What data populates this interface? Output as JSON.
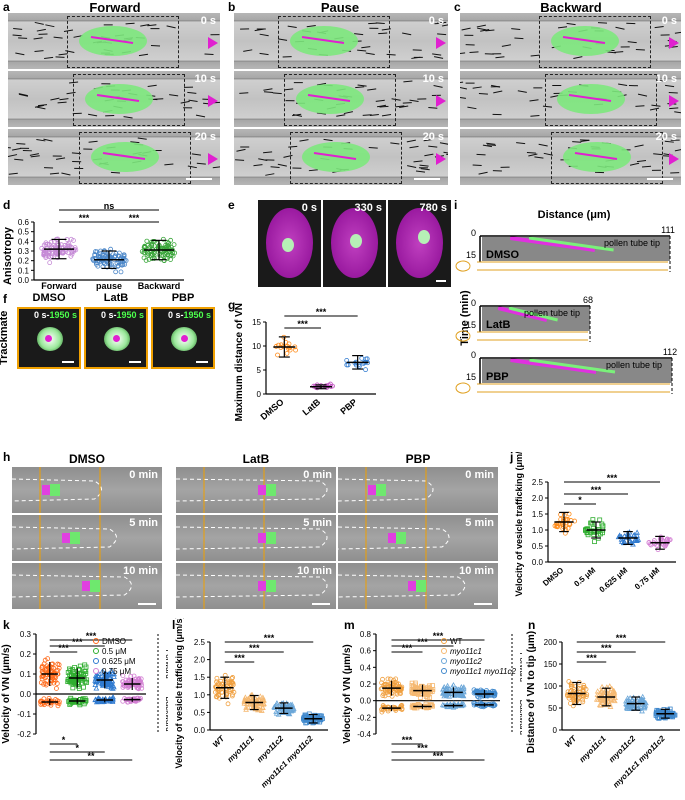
{
  "panels": {
    "a": {
      "letter": "a",
      "title": "Forward",
      "times": [
        "0 s",
        "10 s",
        "20 s"
      ]
    },
    "b": {
      "letter": "b",
      "title": "Pause",
      "times": [
        "0 s",
        "10 s",
        "20 s"
      ]
    },
    "c": {
      "letter": "c",
      "title": "Backward",
      "times": [
        "0 s",
        "10 s",
        "20 s"
      ]
    },
    "d": {
      "letter": "d",
      "ylabel": "Anisotropy",
      "categories": [
        "Forward",
        "pause",
        "Backward"
      ],
      "yticks": [
        "0.0",
        "0.1",
        "0.2",
        "0.3",
        "0.4",
        "0.5",
        "0.6"
      ],
      "sig": [
        "ns",
        "***",
        "***"
      ]
    },
    "e": {
      "letter": "e",
      "times": [
        "0 s",
        "330 s",
        "780 s"
      ]
    },
    "f": {
      "letter": "f",
      "side_label": "Trackmate",
      "titles": [
        "DMSO",
        "LatB",
        "PBP"
      ],
      "time_start": "0 s",
      "time_sep": "-",
      "time_end": "1950 s"
    },
    "g": {
      "letter": "g",
      "ylabel": "Maximum distance of VN (μm)",
      "categories": [
        "DMSO",
        "LatB",
        "PBP"
      ],
      "yticks": [
        "0",
        "5",
        "10",
        "15"
      ],
      "sig": [
        "***",
        "***"
      ]
    },
    "h": {
      "letter": "h",
      "titles": [
        "DMSO",
        "LatB",
        "PBP"
      ],
      "times": [
        "0 min",
        "5 min",
        "10 min"
      ]
    },
    "i": {
      "letter": "i",
      "xlabel": "Distance (μm)",
      "ylabel": "Time (min)",
      "tick0": "0",
      "tick15": "15",
      "tip": "pollen tube tip",
      "groups": [
        {
          "label": "DMSO",
          "max": "111"
        },
        {
          "label": "LatB",
          "max": "68"
        },
        {
          "label": "PBP",
          "max": "112"
        }
      ]
    },
    "j": {
      "letter": "j",
      "ylabel": "Velocity of vesicle trafficking (μm/s)",
      "categories": [
        "DMSO",
        "0.5 μM",
        "0.625 μM",
        "0.75 μM"
      ],
      "yticks": [
        "0.0",
        "0.5",
        "1.0",
        "1.5",
        "2.0",
        "2.5"
      ],
      "sig": [
        "*",
        "***",
        "***"
      ]
    },
    "k": {
      "letter": "k",
      "ylabel": "Velocity of VN (μm/s)",
      "yticks": [
        "-0.2",
        "-0.1",
        "0.0",
        "0.1",
        "0.2",
        "0.3"
      ],
      "legend": [
        "DMSO",
        "0.5 μM",
        "0.625 μM",
        "0.75 μM"
      ],
      "side_forward": "Forward",
      "side_backward": "Backward",
      "sig_top": [
        "***",
        "***",
        "***"
      ],
      "sig_bottom": [
        "*",
        "*",
        "**"
      ]
    },
    "l": {
      "letter": "l",
      "ylabel": "Velocity of vesicle trafficking (μm/s)",
      "categories": [
        "WT",
        "myo11c1",
        "myo11c2",
        "myo11c1 myo11c2"
      ],
      "yticks": [
        "0.0",
        "0.5",
        "1.0",
        "1.5",
        "2.0",
        "2.5"
      ],
      "sig": [
        "***",
        "***",
        "***"
      ]
    },
    "m": {
      "letter": "m",
      "ylabel": "Velocity of VN (μm/s)",
      "yticks": [
        "-0.4",
        "-0.2",
        "0.0",
        "0.2",
        "0.4",
        "0.6",
        "0.8"
      ],
      "legend": [
        "WT",
        "myo11c1",
        "myo11c2",
        "myo11c1 myo11c2"
      ],
      "side_forward": "Forward",
      "side_backward": "Backward",
      "sig_top": [
        "***",
        "***",
        "***"
      ],
      "sig_bottom": [
        "***",
        "***",
        "***"
      ]
    },
    "n": {
      "letter": "n",
      "ylabel": "Distance of VN to tip (μm)",
      "categories": [
        "WT",
        "myo11c1",
        "myo11c2",
        "myo11c1 myo11c2"
      ],
      "yticks": [
        "0",
        "50",
        "100",
        "150",
        "200"
      ],
      "sig": [
        "***",
        "***",
        "***"
      ]
    }
  },
  "chart_data": [
    {
      "panel": "d",
      "type": "scatter",
      "categories": [
        "Forward",
        "pause",
        "Backward"
      ],
      "mean": [
        0.32,
        0.21,
        0.31
      ],
      "sd": [
        0.1,
        0.09,
        0.1
      ],
      "ylim": [
        0,
        0.6
      ],
      "ylabel": "Anisotropy",
      "colors": [
        "#c58ad6",
        "#4a86c8",
        "#3aa63a"
      ]
    },
    {
      "panel": "g",
      "type": "scatter",
      "categories": [
        "DMSO",
        "LatB",
        "PBP"
      ],
      "mean": [
        9.8,
        1.5,
        6.6
      ],
      "sd": [
        2.1,
        0.4,
        1.4
      ],
      "ylim": [
        0,
        15
      ],
      "ylabel": "Maximum distance of VN (μm)",
      "colors": [
        "#ff8c1a",
        "#c254c2",
        "#2f7ad0"
      ]
    },
    {
      "panel": "j",
      "type": "scatter",
      "categories": [
        "DMSO",
        "0.5 μM",
        "0.625 μM",
        "0.75 μM"
      ],
      "mean": [
        1.25,
        1.0,
        0.75,
        0.6
      ],
      "sd": [
        0.3,
        0.25,
        0.2,
        0.2
      ],
      "ylim": [
        0,
        2.5
      ],
      "ylabel": "Velocity of vesicle trafficking (μm/s)",
      "colors": [
        "#ff8c1a",
        "#2fae2f",
        "#2f7ad0",
        "#d37fd3"
      ]
    },
    {
      "panel": "k",
      "type": "scatter",
      "categories": [
        "DMSO",
        "0.5 μM",
        "0.625 μM",
        "0.75 μM"
      ],
      "forward_mean": [
        0.1,
        0.08,
        0.07,
        0.05
      ],
      "backward_mean": [
        -0.04,
        -0.035,
        -0.03,
        -0.028
      ],
      "ylim": [
        -0.2,
        0.3
      ],
      "ylabel": "Velocity of VN (μm/s)",
      "colors": [
        "#ff6a1a",
        "#2fae2f",
        "#2f7ad0",
        "#d37fd3"
      ]
    },
    {
      "panel": "l",
      "type": "scatter",
      "categories": [
        "WT",
        "myo11c1",
        "myo11c2",
        "myo11c1 myo11c2"
      ],
      "mean": [
        1.2,
        0.78,
        0.62,
        0.32
      ],
      "sd": [
        0.3,
        0.2,
        0.15,
        0.12
      ],
      "ylim": [
        0,
        2.5
      ],
      "ylabel": "Velocity of vesicle trafficking (μm/s)",
      "colors": [
        "#f0a040",
        "#f5b870",
        "#6aa6d8",
        "#3f88cc"
      ]
    },
    {
      "panel": "m",
      "type": "scatter",
      "categories": [
        "WT",
        "myo11c1",
        "myo11c2",
        "myo11c1 myo11c2"
      ],
      "forward_mean": [
        0.15,
        0.12,
        0.1,
        0.08
      ],
      "backward_mean": [
        -0.09,
        -0.07,
        -0.06,
        -0.05
      ],
      "ylim": [
        -0.4,
        0.8
      ],
      "ylabel": "Velocity of VN (μm/s)",
      "colors": [
        "#f0a040",
        "#f5b870",
        "#6aa6d8",
        "#3f88cc"
      ]
    },
    {
      "panel": "n",
      "type": "scatter",
      "categories": [
        "WT",
        "myo11c1",
        "myo11c2",
        "myo11c1 myo11c2"
      ],
      "mean": [
        83,
        75,
        60,
        37
      ],
      "sd": [
        25,
        20,
        15,
        10
      ],
      "ylim": [
        0,
        200
      ],
      "ylabel": "Distance of VN to tip (μm)",
      "colors": [
        "#f0a040",
        "#f5b870",
        "#6aa6d8",
        "#3f88cc"
      ]
    }
  ]
}
